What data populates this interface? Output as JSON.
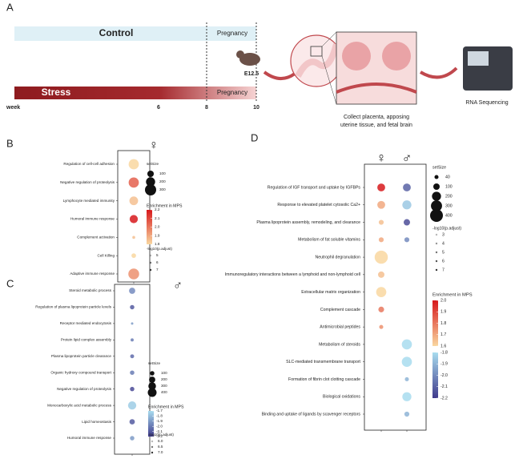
{
  "diagram": {
    "label": "A",
    "control": "Control",
    "pregnancy_top": "Pregnancy",
    "stress": "Stress",
    "pregnancy_bottom": "Pregnancy",
    "week": "week",
    "week_6": "6",
    "week_8": "8",
    "week_10": "10",
    "day": "E12.5",
    "caption_lines": [
      "Collect placenta, apposing",
      "uterine tissue, and fetal brain"
    ],
    "sequencing": "RNA Sequencing"
  },
  "chart_data": [
    {
      "type": "dot",
      "label": "B",
      "categories": [
        "Regulation of cell-cell adhesion",
        "Negative regulation of proteolysis",
        "Lymphocyte mediated immunity",
        "Humoral immune response",
        "Complement activation",
        "Cell Killing",
        "Adaptive immune response"
      ],
      "series": [
        {
          "name": "♀",
          "values": [
            1.8,
            2.05,
            1.85,
            2.2,
            1.85,
            1.8,
            1.95
          ],
          "sizes": [
            250,
            250,
            180,
            160,
            20,
            50,
            280
          ]
        }
      ],
      "size_legend": {
        "title": "setSize",
        "ticks": [
          100,
          200,
          300
        ]
      },
      "color_scales": [
        {
          "title": "Enrichment in MPS",
          "ticks": [
            2.2,
            2.1,
            {
              "value": 2,
              "label": "2.0"
            },
            1.9,
            1.8
          ],
          "colors": [
            "#f9d7a0",
            "#d7191c"
          ]
        }
      ],
      "p_legend": {
        "title": "-log10(p.adjust)",
        "ticks": [
          5,
          6,
          7
        ]
      }
    },
    {
      "type": "dot",
      "label": "C",
      "categories": [
        "Steroid metabolic process",
        "Regulation of plasma lipoprotein particle levels",
        "Receptor mediated endocytosis",
        "Protein lipid complex assembly",
        "Plasma lipoprotein particle clearance",
        "Organic hydroxy compound transport",
        "Negative regulation of proteolysis",
        "Monocarboxylic acid metabolic process",
        "Lipid homeostasis",
        "Humoral immune response"
      ],
      "series": [
        {
          "name": "♂",
          "values": [
            -1.95,
            -2.1,
            -1.9,
            -2,
            -2.05,
            -2,
            -2.15,
            -1.75,
            -2.1,
            -1.9
          ],
          "sizes": [
            200,
            100,
            30,
            50,
            80,
            100,
            100,
            350,
            150,
            100
          ]
        }
      ],
      "size_legend": {
        "title": "setSize",
        "ticks": [
          100,
          200,
          300,
          400
        ]
      },
      "color_scales": [
        {
          "title": "Enrichment in MPS",
          "ticks": [
            -1.7,
            -1.8,
            -1.9,
            {
              "value": -2,
              "label": "-2.0"
            },
            -2.1,
            -2.2
          ],
          "colors": [
            "#3f3a8c",
            "#a8dcef"
          ]
        }
      ],
      "p_legend": {
        "title": "-log10(p.adjust)",
        "ticks": [
          {
            "value": 6,
            "label": "6.0"
          },
          6.5,
          {
            "value": 7,
            "label": "7.0"
          }
        ]
      }
    },
    {
      "type": "dot",
      "label": "D",
      "categories": [
        "Regulation of IGF transport and uptake by IGFBPs",
        "Response to elevated platelet cytosolic Ca2+",
        "Plasma lipoprotein assembly, remodeling, and clearance",
        "Metabolism of fat soluble vitamins",
        "Neutrophil degranulation",
        "Immunoregulatory interactions between a lymphoid and non-lymphoid cell",
        "Extracellular matrix organization",
        "Complement cascade",
        "Antimicrobial peptides",
        "Metabolism of steroids",
        "SLC-mediated transmembrane transport",
        "Formation of fibrin clot clotting cascade",
        "Biological oxidations",
        "Binding and uptake of ligands by scavenger receptors"
      ],
      "series": [
        {
          "name": "♀",
          "values": [
            2,
            1.7,
            1.65,
            1.7,
            1.6,
            1.65,
            1.6,
            1.8,
            1.75,
            null,
            null,
            null,
            null,
            null
          ],
          "sizes": [
            150,
            150,
            60,
            60,
            420,
            100,
            250,
            80,
            40,
            null,
            null,
            null,
            null,
            null
          ]
        },
        {
          "name": "♂",
          "values": [
            -2.1,
            -1.85,
            -2.15,
            -2,
            null,
            null,
            null,
            null,
            null,
            -1.8,
            -1.8,
            -1.9,
            -1.8,
            -1.9
          ],
          "sizes": [
            150,
            200,
            100,
            60,
            null,
            null,
            null,
            null,
            null,
            250,
            250,
            40,
            200,
            60
          ]
        }
      ],
      "size_legend": {
        "title": "setSize",
        "ticks": [
          40,
          100,
          200,
          300,
          400
        ]
      },
      "color_scales": [
        {
          "title": "Enrichment in MPS",
          "ticks": [
            {
              "value": 2,
              "label": "2.0"
            },
            1.9,
            1.8,
            1.7,
            1.6
          ],
          "colors": [
            "#f9d7a0",
            "#d7191c"
          ]
        },
        {
          "ticks": [
            -1.8,
            -1.9,
            {
              "value": -2,
              "label": "-2.0"
            },
            -2.1,
            -2.2
          ],
          "colors": [
            "#3f3a8c",
            "#a8dcef"
          ]
        }
      ],
      "p_legend": {
        "title": "-log10(p.adjust)",
        "ticks": [
          3,
          4,
          5,
          6,
          7
        ]
      }
    }
  ]
}
